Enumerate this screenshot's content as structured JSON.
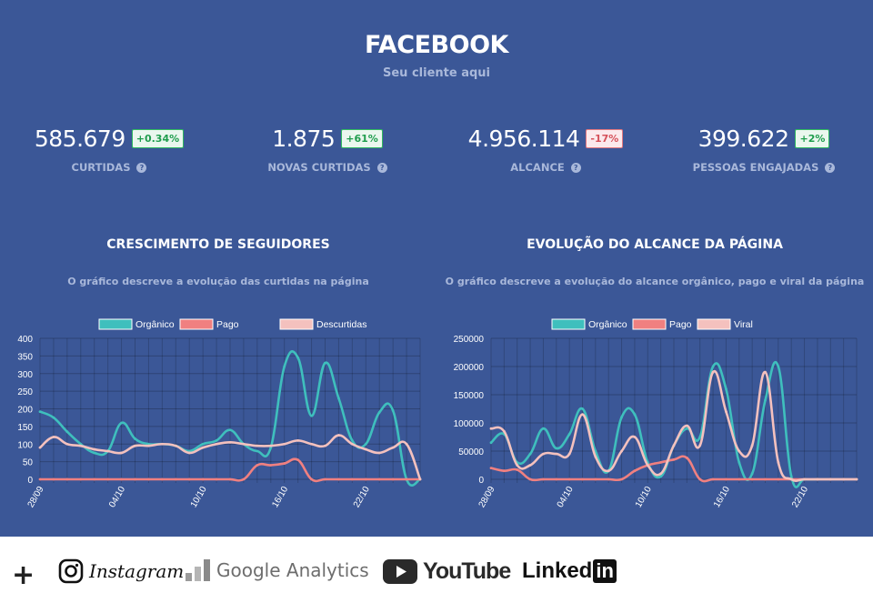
{
  "header": {
    "title": "FACEBOOK",
    "subtitle": "Seu cliente aqui"
  },
  "kpis": [
    {
      "value": "585.679",
      "delta": "+0.34%",
      "label": "CURTIDAS",
      "trend": "positive"
    },
    {
      "value": "1.875",
      "delta": "+61%",
      "label": "NOVAS CURTIDAS",
      "trend": "positive"
    },
    {
      "value": "4.956.114",
      "delta": "-17%",
      "label": "ALCANCE",
      "trend": "negative"
    },
    {
      "value": "399.622",
      "delta": "+2%",
      "label": "PESSOAS ENGAJADAS",
      "trend": "positive"
    }
  ],
  "charts": [
    {
      "title": "CRESCIMENTO DE SEGUIDORES",
      "description": "O gráfico descreve a evolução das curtidas na página"
    },
    {
      "title": "EVOLUÇÃO DO ALCANCE DA PÁGINA",
      "description": "O gráfico descreve a evolução do alcance orgânico, pago e viral da página"
    }
  ],
  "chart_data": [
    {
      "type": "line",
      "x": [
        "28/09",
        "29/09",
        "30/09",
        "01/10",
        "02/10",
        "03/10",
        "04/10",
        "05/10",
        "06/10",
        "07/10",
        "08/10",
        "09/10",
        "10/10",
        "11/10",
        "12/10",
        "13/10",
        "14/10",
        "15/10",
        "16/10",
        "17/10",
        "18/10",
        "19/10",
        "20/10",
        "21/10",
        "22/10",
        "23/10",
        "24/10",
        "25/10",
        "26/10"
      ],
      "xticks": [
        "28/09",
        "04/10",
        "10/10",
        "16/10",
        "22/10"
      ],
      "series": [
        {
          "name": "Orgânico",
          "color": "#3fbfbd",
          "values": [
            192,
            175,
            135,
            100,
            75,
            80,
            160,
            115,
            100,
            100,
            95,
            80,
            100,
            110,
            140,
            100,
            80,
            90,
            320,
            345,
            180,
            330,
            230,
            110,
            100,
            190,
            195,
            0,
            0
          ]
        },
        {
          "name": "Pago",
          "color": "#f08080",
          "values": [
            0,
            0,
            0,
            0,
            0,
            0,
            0,
            0,
            0,
            0,
            0,
            0,
            0,
            0,
            0,
            0,
            40,
            40,
            45,
            55,
            0,
            0,
            0,
            0,
            0,
            0,
            0,
            0,
            0
          ]
        },
        {
          "name": "Descurtidas",
          "color": "#f4c1be",
          "values": [
            90,
            120,
            100,
            95,
            85,
            80,
            75,
            95,
            95,
            100,
            95,
            75,
            90,
            100,
            105,
            100,
            95,
            95,
            100,
            110,
            100,
            95,
            125,
            100,
            85,
            75,
            90,
            100,
            0
          ]
        }
      ],
      "ylim": [
        0,
        400
      ],
      "yticks": [
        0,
        50,
        100,
        150,
        200,
        250,
        300,
        350,
        400
      ],
      "legend": "top"
    },
    {
      "type": "line",
      "x": [
        "28/09",
        "29/09",
        "30/09",
        "01/10",
        "02/10",
        "03/10",
        "04/10",
        "05/10",
        "06/10",
        "07/10",
        "08/10",
        "09/10",
        "10/10",
        "11/10",
        "12/10",
        "13/10",
        "14/10",
        "15/10",
        "16/10",
        "17/10",
        "18/10",
        "19/10",
        "20/10",
        "21/10",
        "22/10",
        "23/10",
        "24/10",
        "25/10",
        "26/10"
      ],
      "xticks": [
        "28/09",
        "04/10",
        "10/10",
        "16/10",
        "22/10"
      ],
      "series": [
        {
          "name": "Orgânico",
          "color": "#3fbfbd",
          "values": [
            65000,
            80000,
            30000,
            45000,
            90000,
            55000,
            80000,
            125000,
            50000,
            15000,
            110000,
            115000,
            30000,
            5000,
            60000,
            90000,
            75000,
            200000,
            160000,
            30000,
            10000,
            140000,
            200000,
            5000,
            0,
            0,
            0,
            0,
            0
          ]
        },
        {
          "name": "Pago",
          "color": "#f08080",
          "values": [
            20000,
            15000,
            17000,
            0,
            0,
            0,
            0,
            0,
            0,
            0,
            0,
            15000,
            25000,
            30000,
            35000,
            38000,
            0,
            0,
            0,
            0,
            0,
            0,
            0,
            0,
            0,
            0,
            0,
            0,
            0
          ]
        },
        {
          "name": "Viral",
          "color": "#f4c1be",
          "values": [
            90000,
            85000,
            25000,
            25000,
            45000,
            45000,
            45000,
            115000,
            40000,
            15000,
            50000,
            75000,
            25000,
            10000,
            60000,
            95000,
            60000,
            190000,
            120000,
            50000,
            60000,
            190000,
            30000,
            0,
            0,
            0,
            0,
            0,
            0
          ]
        }
      ],
      "ylim": [
        0,
        250000
      ],
      "yticks": [
        0,
        50000,
        100000,
        150000,
        200000,
        250000
      ],
      "legend": "top"
    }
  ],
  "footer": {
    "plus": "+",
    "instagram": "Instagram",
    "google_analytics": "Google Analytics",
    "youtube": "YouTube",
    "linkedin_left": "Linked",
    "linkedin_right": "in"
  }
}
